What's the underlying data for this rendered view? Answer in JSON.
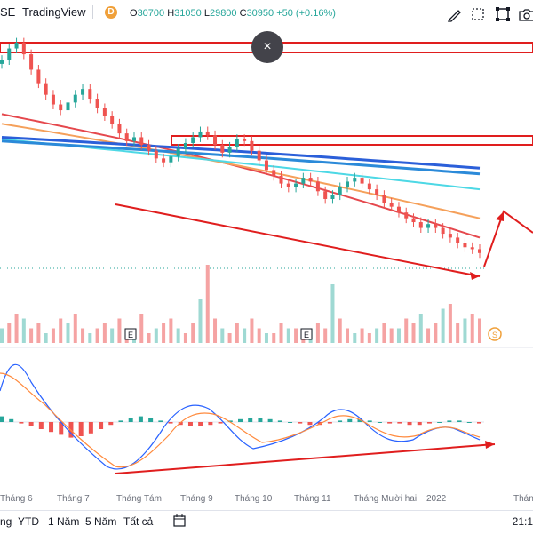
{
  "header": {
    "symbol_fragment": "SE",
    "brand": "TradingView",
    "interval_badge": "D",
    "ohlc": {
      "o_label": "O",
      "o_value": "30700",
      "h_label": "H",
      "h_value": "31050",
      "l_label": "L",
      "l_value": "29800",
      "c_label": "C",
      "c_value": "30950",
      "change": "+50 (+0.16%)"
    },
    "tools": [
      {
        "name": "draw-icon"
      },
      {
        "name": "fullscreen-icon"
      },
      {
        "name": "camera-icon"
      }
    ]
  },
  "overlay": {
    "close_symbol": "×"
  },
  "chart_data": {
    "type": "candlestick",
    "price_values": [
      31500,
      32100,
      32400,
      31800,
      31000,
      30300,
      29700,
      29200,
      28900,
      29300,
      29700,
      30000,
      29500,
      29000,
      28600,
      28200,
      27700,
      27300,
      27500,
      27100,
      26800,
      26400,
      26200,
      26500,
      26900,
      27200,
      27500,
      27800,
      27600,
      27100,
      26700,
      27000,
      27400,
      27300,
      26800,
      26300,
      25800,
      25500,
      25100,
      24900,
      25100,
      25400,
      25200,
      24700,
      24300,
      24500,
      24900,
      25200,
      25400,
      25100,
      24800,
      24500,
      24100,
      23900,
      23600,
      23300,
      23100,
      22800,
      23000,
      22800,
      22500,
      22300,
      22000,
      21800,
      21700,
      21500
    ],
    "ma_lines": [
      {
        "color": "#e5484d",
        "values_start": 28700,
        "values_end": 22300
      },
      {
        "color": "#f5a05a",
        "values_start": 28200,
        "values_end": 23300
      },
      {
        "color": "#4dd8e5",
        "values_start": 27400,
        "values_end": 24800
      },
      {
        "color": "#2b5fd9",
        "values_start": 27500,
        "values_end": 25900
      },
      {
        "color": "#2b8ad9",
        "values_start": 27300,
        "values_end": 25600
      }
    ],
    "volume_values": [
      3,
      4,
      6,
      5,
      3,
      4,
      2,
      3,
      5,
      4,
      6,
      3,
      2,
      3,
      4,
      3,
      5,
      2,
      3,
      6,
      2,
      3,
      4,
      5,
      3,
      2,
      4,
      9,
      16,
      5,
      3,
      2,
      4,
      3,
      5,
      3,
      2,
      2,
      4,
      3,
      3,
      2,
      3,
      4,
      3,
      12,
      5,
      3,
      2,
      3,
      2,
      3,
      4,
      3,
      3,
      5,
      4,
      6,
      3,
      4,
      7,
      8,
      4,
      5,
      6,
      5
    ],
    "macd_values": [
      4,
      2,
      -1,
      -3,
      -5,
      -7,
      -9,
      -11,
      -10,
      -8,
      -5,
      -2,
      1,
      3,
      4,
      3,
      1,
      -1,
      -2,
      -3,
      -3,
      -2,
      -1,
      1,
      2,
      3,
      3,
      2,
      1,
      0,
      -1,
      -2,
      -2,
      -1,
      1,
      2,
      2,
      1,
      0,
      -1,
      -1,
      -2,
      -2,
      -1,
      0,
      1,
      1,
      0,
      -1
    ],
    "x_labels": [
      "Tháng 6",
      "Tháng 7",
      "Tháng Tám",
      "Tháng 9",
      "Tháng 10",
      "Tháng 11",
      "Tháng Mười hai",
      "2022",
      "Tháng"
    ],
    "earnings_marker": "E",
    "dividend_marker": "S"
  },
  "footer": {
    "ranges": [
      "ng",
      "YTD",
      "1 Năm",
      "5 Năm",
      "Tất cả"
    ],
    "clock": "21:1"
  },
  "colors": {
    "up": "#26a69a",
    "down": "#ef5350",
    "annotation": "#e01e1e"
  }
}
